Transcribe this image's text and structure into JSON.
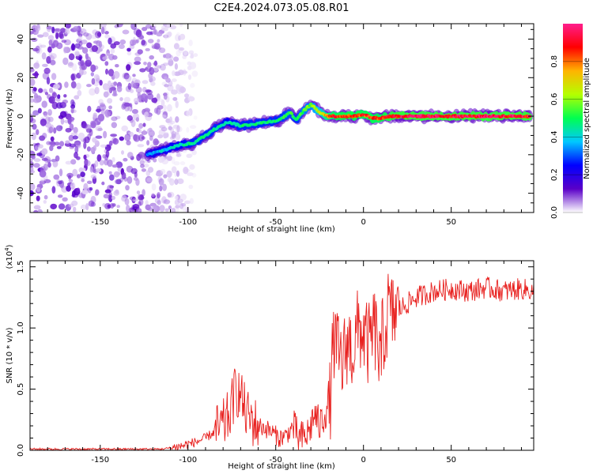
{
  "title": "C2E4.2024.073.05.08.R01",
  "chart_data": [
    {
      "type": "heatmap",
      "xlabel": "Height of straight line (km)",
      "ylabel": "Frequency (Hz)",
      "xlim": [
        -190,
        97
      ],
      "ylim": [
        -50,
        48
      ],
      "xticks": [
        -150,
        -100,
        -50,
        0,
        50
      ],
      "xtick_labels": [
        "-150",
        "-100",
        "-50",
        "0",
        "50"
      ],
      "yticks": [
        -40,
        -20,
        0,
        20,
        40
      ],
      "ytick_labels": [
        "-40",
        "-20",
        "0",
        "20",
        "40"
      ],
      "colorbar": {
        "label": "Normalized spectral amplitude",
        "range": [
          0,
          1
        ],
        "ticks": [
          0.0,
          0.2,
          0.4,
          0.6,
          0.8
        ],
        "tick_labels": [
          "0.0",
          "0.2",
          "0.4",
          "0.6",
          "0.8"
        ],
        "colormap": [
          "#ffffff",
          "#5a00c8",
          "#0000ff",
          "#00c8ff",
          "#00ff50",
          "#b4ff00",
          "#ffb400",
          "#ff0000",
          "#ff1e8c"
        ]
      },
      "noise_region_x": [
        -190,
        -108
      ],
      "ridge": {
        "x": [
          -123,
          -115,
          -105,
          -97,
          -90,
          -82,
          -77,
          -70,
          -62,
          -55,
          -48,
          -42,
          -38,
          -34,
          -30,
          -25,
          -20,
          -15,
          -10,
          -5,
          0,
          5,
          10,
          15,
          20,
          40,
          60,
          80,
          95
        ],
        "y": [
          -20,
          -18,
          -15,
          -14,
          -10,
          -5,
          -3,
          -5,
          -4,
          -3,
          -2,
          2,
          -2,
          3,
          6,
          2,
          0,
          0,
          0,
          0,
          1,
          -1,
          -1,
          0,
          0,
          0,
          0,
          0,
          0
        ],
        "amplitude": [
          0.35,
          0.4,
          0.45,
          0.5,
          0.5,
          0.5,
          0.45,
          0.5,
          0.5,
          0.5,
          0.5,
          0.55,
          0.5,
          0.6,
          0.6,
          0.7,
          0.85,
          0.9,
          0.92,
          0.9,
          0.9,
          0.9,
          0.9,
          0.95,
          0.97,
          0.97,
          0.97,
          0.97,
          0.97
        ]
      }
    },
    {
      "type": "line",
      "xlabel": "Height of straight line (km)",
      "ylabel": "SNR (10 * v/v)",
      "y_multiplier": "(x10^4)",
      "xlim": [
        -190,
        97
      ],
      "ylim": [
        0,
        1.55
      ],
      "xticks": [
        -150,
        -100,
        -50,
        0,
        50
      ],
      "xtick_labels": [
        "-150",
        "-100",
        "-50",
        "0",
        "50"
      ],
      "yticks": [
        0.0,
        0.5,
        1.0,
        1.5
      ],
      "ytick_labels": [
        "0.0",
        "0.5",
        "1.0",
        "1.5"
      ],
      "line_color": "#e8201e",
      "series": [
        {
          "x": [
            -190,
            -170,
            -150,
            -130,
            -115,
            -110,
            -105,
            -100,
            -95,
            -90,
            -85,
            -80,
            -76,
            -73,
            -70,
            -67,
            -64,
            -60,
            -56,
            -52,
            -48,
            -44,
            -40,
            -37,
            -34,
            -31,
            -28,
            -25,
            -22,
            -19,
            -17,
            -15,
            -12,
            -9,
            -6,
            -3,
            0,
            3,
            6,
            8,
            10,
            11,
            12,
            14,
            16,
            20,
            25,
            30,
            40,
            50,
            60,
            70,
            80,
            90,
            97
          ],
          "y": [
            0.01,
            0.01,
            0.01,
            0.01,
            0.01,
            0.02,
            0.03,
            0.05,
            0.07,
            0.1,
            0.15,
            0.2,
            0.3,
            0.5,
            0.45,
            0.3,
            0.25,
            0.2,
            0.18,
            0.15,
            0.1,
            0.12,
            0.2,
            0.1,
            0.1,
            0.15,
            0.3,
            0.2,
            0.3,
            0.4,
            0.9,
            0.8,
            0.7,
            0.9,
            0.8,
            1.0,
            0.95,
            0.85,
            1.0,
            0.9,
            0.6,
            1.1,
            0.9,
            1.15,
            1.1,
            1.15,
            1.2,
            1.25,
            1.3,
            1.32,
            1.3,
            1.33,
            1.3,
            1.32,
            1.3
          ]
        }
      ]
    }
  ]
}
